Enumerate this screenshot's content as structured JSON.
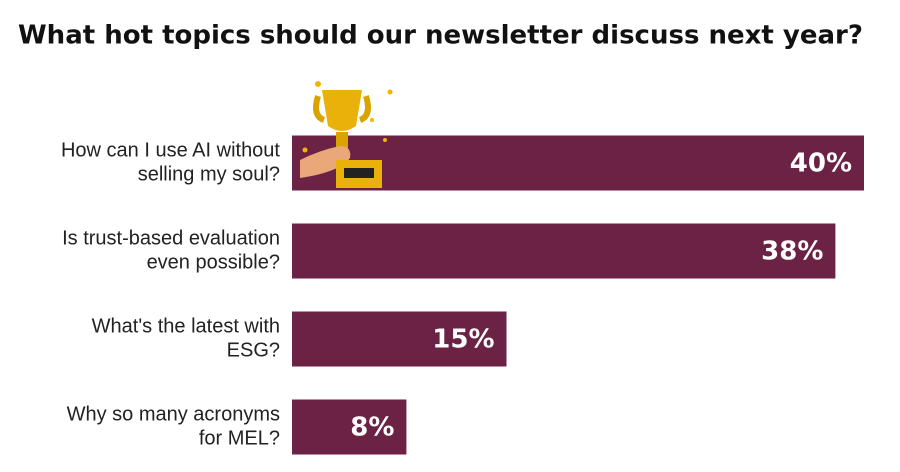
{
  "chart_data": {
    "type": "hbar",
    "title": "What hot topics should our newsletter discuss next year?",
    "categories": [
      [
        "How can I use AI without",
        "selling my soul?"
      ],
      [
        "Is trust-based evaluation",
        "even possible?"
      ],
      [
        "What's the latest with",
        "ESG?"
      ],
      [
        "Why so many acronyms",
        "for MEL?"
      ]
    ],
    "values": [
      40,
      38,
      15,
      8
    ],
    "value_labels": [
      "40%",
      "38%",
      "15%",
      "8%"
    ],
    "color": "#6b2245",
    "xlim": [
      0,
      40
    ]
  }
}
